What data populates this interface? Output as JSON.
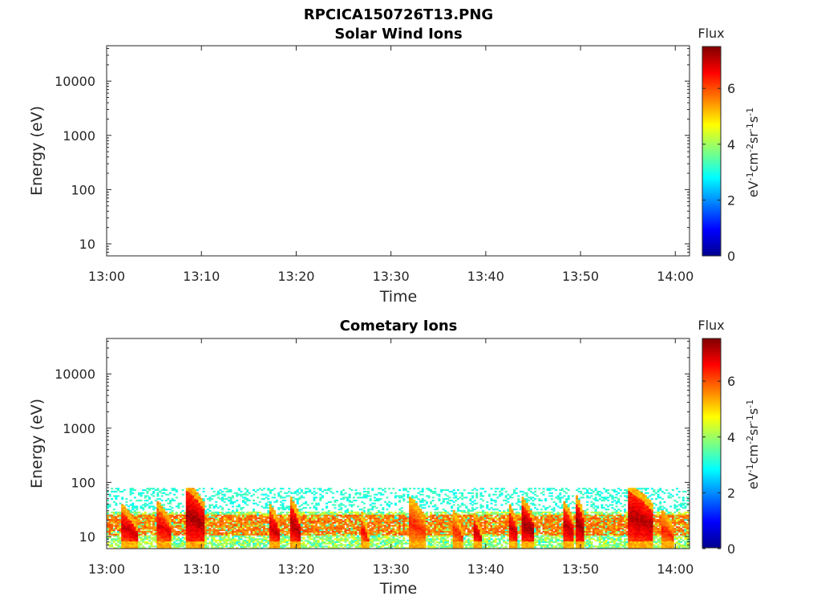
{
  "figure": {
    "title": "RPCICA150726T13.PNG"
  },
  "chart_data": [
    {
      "type": "heatmap",
      "title": "Solar Wind Ions",
      "xlabel": "Time",
      "ylabel": "Energy (eV)",
      "x_tick_labels": [
        "13:00",
        "13:10",
        "13:20",
        "13:30",
        "13:40",
        "13:50",
        "14:00"
      ],
      "x_ticks_minutes": [
        0,
        10,
        20,
        30,
        40,
        50,
        60
      ],
      "xlim_minutes": [
        0,
        61.5
      ],
      "y_scale": "log",
      "ylim": [
        6,
        45000
      ],
      "y_tick_labels": [
        "10",
        "100",
        "1000",
        "10000"
      ],
      "y_ticks": [
        10,
        100,
        1000,
        10000
      ],
      "colorbar": {
        "title": "Flux",
        "label": "eV-1cm-2sr-1s-1",
        "range": [
          0,
          7.5
        ],
        "ticks": [
          "0",
          "2",
          "4",
          "6"
        ],
        "tick_values": [
          0,
          2,
          4,
          6
        ],
        "colormap": "jet"
      },
      "data_present": false
    },
    {
      "type": "heatmap",
      "title": "Cometary Ions",
      "xlabel": "Time",
      "ylabel": "Energy (eV)",
      "x_tick_labels": [
        "13:00",
        "13:10",
        "13:20",
        "13:30",
        "13:40",
        "13:50",
        "14:00"
      ],
      "x_ticks_minutes": [
        0,
        10,
        20,
        30,
        40,
        50,
        60
      ],
      "xlim_minutes": [
        0,
        61.5
      ],
      "y_scale": "log",
      "ylim": [
        6,
        45000
      ],
      "y_tick_labels": [
        "10",
        "100",
        "1000",
        "10000"
      ],
      "y_ticks": [
        10,
        100,
        1000,
        10000
      ],
      "colorbar": {
        "title": "Flux",
        "label": "eV-1cm-2sr-1s-1",
        "range": [
          0,
          7.5
        ],
        "ticks": [
          "0",
          "2",
          "4",
          "6"
        ],
        "tick_values": [
          0,
          2,
          4,
          6
        ],
        "colormap": "jet"
      },
      "data_present": true,
      "background": {
        "energy_range_eV": [
          6,
          80
        ],
        "flux_low": 2.8,
        "band_energy_eV": [
          10,
          25
        ],
        "band_flux": 5.3
      },
      "bursts": [
        {
          "start_min": 1.5,
          "end_min": 3.2,
          "peak_flux": 7.2,
          "top_energy_eV": 28
        },
        {
          "start_min": 5.2,
          "end_min": 6.8,
          "peak_flux": 7.0,
          "top_energy_eV": 32
        },
        {
          "start_min": 8.3,
          "end_min": 10.3,
          "peak_flux": 7.5,
          "top_energy_eV": 70
        },
        {
          "start_min": 17.0,
          "end_min": 18.2,
          "peak_flux": 7.2,
          "top_energy_eV": 30
        },
        {
          "start_min": 19.2,
          "end_min": 20.3,
          "peak_flux": 7.4,
          "top_energy_eV": 40
        },
        {
          "start_min": 26.7,
          "end_min": 27.5,
          "peak_flux": 6.8,
          "top_energy_eV": 22
        },
        {
          "start_min": 31.8,
          "end_min": 33.5,
          "peak_flux": 6.6,
          "top_energy_eV": 40
        },
        {
          "start_min": 36.5,
          "end_min": 37.5,
          "peak_flux": 6.6,
          "top_energy_eV": 22
        },
        {
          "start_min": 38.5,
          "end_min": 39.5,
          "peak_flux": 7.2,
          "top_energy_eV": 22
        },
        {
          "start_min": 42.3,
          "end_min": 43.3,
          "peak_flux": 7.2,
          "top_energy_eV": 30
        },
        {
          "start_min": 43.6,
          "end_min": 45.0,
          "peak_flux": 7.5,
          "top_energy_eV": 40
        },
        {
          "start_min": 48.0,
          "end_min": 49.2,
          "peak_flux": 7.3,
          "top_energy_eV": 35
        },
        {
          "start_min": 49.3,
          "end_min": 50.3,
          "peak_flux": 7.5,
          "top_energy_eV": 45
        },
        {
          "start_min": 54.8,
          "end_min": 57.5,
          "peak_flux": 7.4,
          "top_energy_eV": 70
        },
        {
          "start_min": 58.3,
          "end_min": 59.8,
          "peak_flux": 6.6,
          "top_energy_eV": 24
        }
      ]
    }
  ]
}
